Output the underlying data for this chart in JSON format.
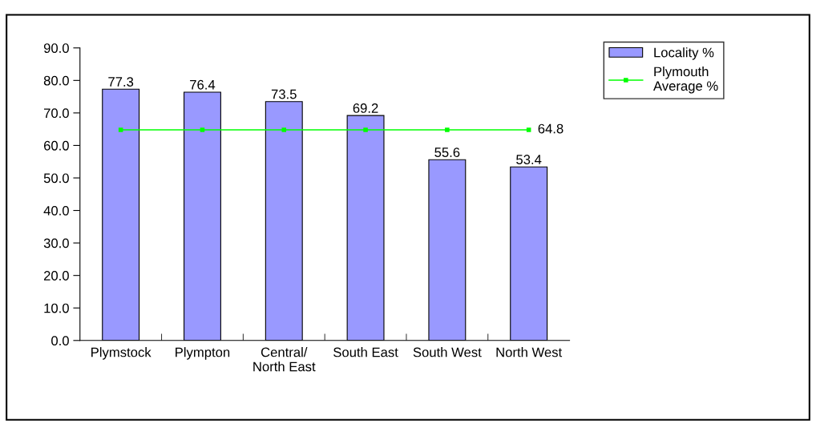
{
  "chart_data": {
    "type": "bar",
    "categories": [
      "Plymstock",
      "Plympton",
      "Central/\nNorth East",
      "South East",
      "South West",
      "North West"
    ],
    "series": [
      {
        "name": "Locality %",
        "color": "#9999ff",
        "values": [
          77.3,
          76.4,
          73.5,
          69.2,
          55.6,
          53.4
        ],
        "data_labels": true
      },
      {
        "name": "Plymouth\nAverage %",
        "type": "line",
        "color": "#00ff00",
        "marker": "square",
        "values": [
          64.8,
          64.8,
          64.8,
          64.8,
          64.8,
          64.8
        ],
        "value_labels": [
          null,
          null,
          null,
          null,
          null,
          "64.8"
        ]
      }
    ],
    "ylim": [
      0,
      90
    ],
    "yticks": [
      {
        "value": 0,
        "label": "0.0"
      },
      {
        "value": 10,
        "label": "10.0"
      },
      {
        "value": 20,
        "label": "20.0"
      },
      {
        "value": 30,
        "label": "30.0"
      },
      {
        "value": 40,
        "label": "40.0"
      },
      {
        "value": 50,
        "label": "50.0"
      },
      {
        "value": 60,
        "label": "60.0"
      },
      {
        "value": 70,
        "label": "70.0"
      },
      {
        "value": 80,
        "label": "80.0"
      },
      {
        "value": 90,
        "label": "90.0"
      }
    ],
    "grid": false,
    "legend": "top right"
  }
}
